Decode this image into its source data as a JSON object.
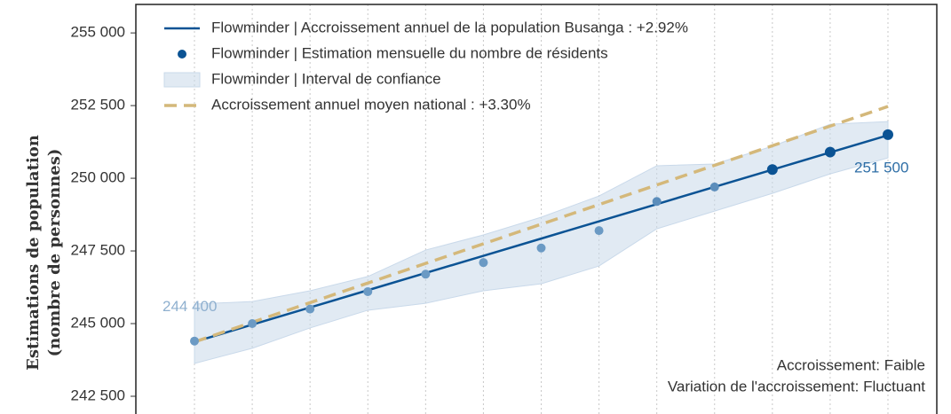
{
  "chart_data": {
    "type": "line",
    "y_label_lines": [
      "Estimations de population",
      "(nombre de personnes)"
    ],
    "categories": [
      null,
      null,
      null,
      null,
      null,
      null,
      null,
      null,
      null,
      null,
      null,
      null,
      null
    ],
    "ylim": [
      241890,
      255980
    ],
    "yticks": [
      {
        "value": 242500,
        "label": "242 500"
      },
      {
        "value": 245000,
        "label": "245 000"
      },
      {
        "value": 247500,
        "label": "247 500"
      },
      {
        "value": 250000,
        "label": "250 000"
      },
      {
        "value": 252500,
        "label": "252 500"
      },
      {
        "value": 255000,
        "label": "255 000"
      }
    ],
    "grid": "x",
    "legend": "upper left",
    "series": [
      {
        "type": "line",
        "name": "Flowminder | Accroissement annuel de la population Busanga : +2.92%",
        "color": "#0b5394",
        "values": [
          244370,
          244963,
          245555,
          246148,
          246740,
          247333,
          247925,
          248518,
          249110,
          249703,
          250295,
          250888,
          251480
        ]
      },
      {
        "type": "scatter",
        "name": "Flowminder | Estimation mensuelle du nombre de résidents",
        "color": "#0b5394",
        "values": [
          244400,
          245000,
          245500,
          246100,
          246700,
          247100,
          247600,
          248200,
          249200,
          249700,
          250300,
          250900,
          251500
        ],
        "point_colors": [
          "#6b9ac4",
          "#6b9ac4",
          "#6b9ac4",
          "#6b9ac4",
          "#6b9ac4",
          "#6b9ac4",
          "#6b9ac4",
          "#6b9ac4",
          "#5b8dbb",
          "#5b8dbb",
          "#0b5394",
          "#0b5394",
          "#0b5394"
        ],
        "value_labels": [
          "244 400",
          null,
          null,
          null,
          null,
          null,
          null,
          null,
          null,
          null,
          null,
          null,
          "251 500"
        ],
        "value_label_colors": [
          "#8fb0cf",
          null,
          null,
          null,
          null,
          null,
          null,
          null,
          null,
          null,
          null,
          null,
          "#2e6ea6"
        ]
      },
      {
        "type": "band",
        "name": "Flowminder | Interval de confiance",
        "color": "#c9d9ea",
        "upper": [
          245670,
          245760,
          246130,
          246620,
          247530,
          248050,
          248660,
          249390,
          250430,
          250490,
          251100,
          251860,
          251950
        ],
        "lower": [
          243630,
          244150,
          244850,
          245460,
          245700,
          246130,
          246370,
          246980,
          248260,
          248870,
          249480,
          250150,
          250700
        ]
      },
      {
        "type": "line",
        "dashed": true,
        "name": "Accroissement annuel moyen national : +3.30%",
        "color": "#d4b87a",
        "values": [
          244370,
          245045,
          245720,
          246395,
          247070,
          247745,
          248420,
          249095,
          249770,
          250445,
          251120,
          251795,
          252470
        ]
      }
    ],
    "annotations": [
      "Accroissement: Faible",
      "Variation de l'accroissement: Fluctuant"
    ]
  }
}
